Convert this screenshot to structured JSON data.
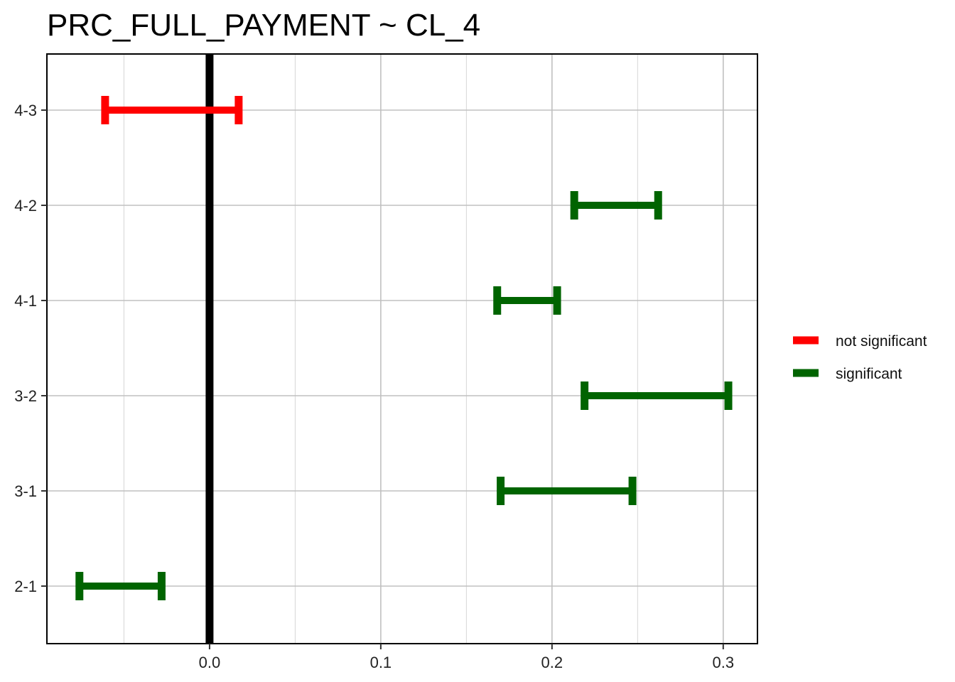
{
  "chart_data": {
    "type": "errorbar",
    "title": "PRC_FULL_PAYMENT  ~ CL_4",
    "xlabel": "",
    "ylabel": "",
    "xlim": [
      -0.095,
      0.32
    ],
    "x_ticks": [
      {
        "value": 0.0,
        "label": "0.0"
      },
      {
        "value": 0.1,
        "label": "0.1"
      },
      {
        "value": 0.2,
        "label": "0.2"
      },
      {
        "value": 0.3,
        "label": "0.3"
      }
    ],
    "minor_grid": [
      -0.05,
      0.05,
      0.15,
      0.25
    ],
    "reference_line": 0.0,
    "grid": true,
    "categories": [
      "4-3",
      "4-2",
      "4-1",
      "3-2",
      "3-1",
      "2-1"
    ],
    "intervals": [
      {
        "category": "4-3",
        "lower": -0.061,
        "upper": 0.017,
        "group": "not significant"
      },
      {
        "category": "4-2",
        "lower": 0.213,
        "upper": 0.262,
        "group": "significant"
      },
      {
        "category": "4-1",
        "lower": 0.168,
        "upper": 0.203,
        "group": "significant"
      },
      {
        "category": "3-2",
        "lower": 0.219,
        "upper": 0.303,
        "group": "significant"
      },
      {
        "category": "3-1",
        "lower": 0.17,
        "upper": 0.247,
        "group": "significant"
      },
      {
        "category": "2-1",
        "lower": -0.076,
        "upper": -0.028,
        "group": "significant"
      }
    ],
    "legend": [
      {
        "label": "not significant",
        "color": "#ff0000"
      },
      {
        "label": "significant",
        "color": "#006400"
      }
    ],
    "legend_position": "right",
    "colors": {
      "reference_line": "#000000",
      "grid": "#c0c0c0",
      "frame": "#000000"
    }
  }
}
